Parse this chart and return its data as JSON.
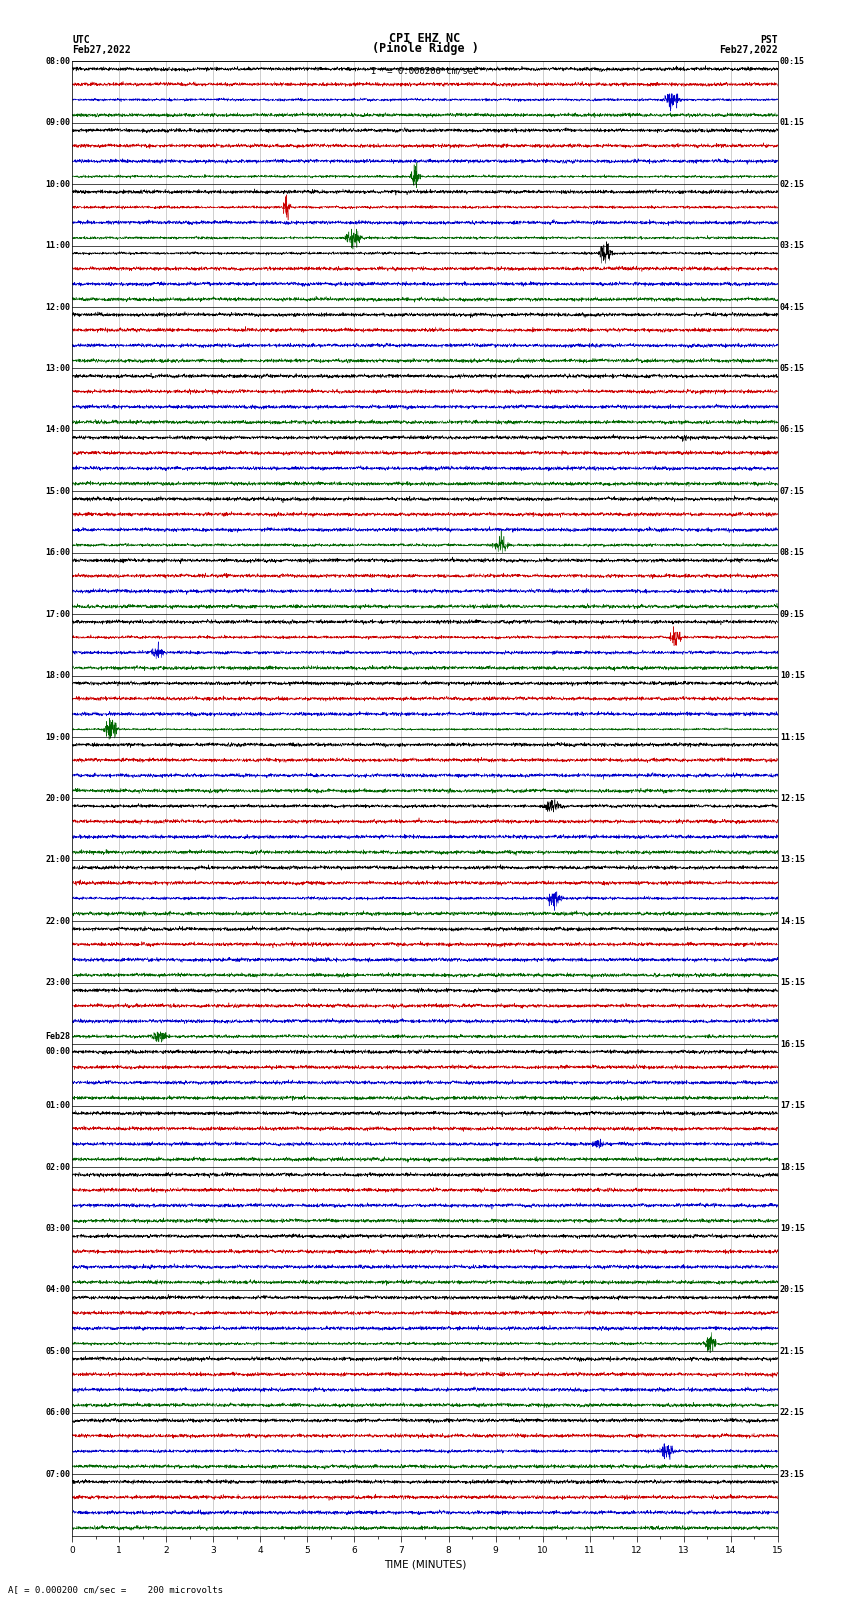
{
  "title_line1": "CPI EHZ NC",
  "title_line2": "(Pinole Ridge )",
  "scale_label": "= 0.000200 cm/sec",
  "left_header_line1": "UTC",
  "left_header_line2": "Feb27,2022",
  "right_header_line1": "PST",
  "right_header_line2": "Feb27,2022",
  "bottom_label": "TIME (MINUTES)",
  "bottom_note": "A[ = 0.000200 cm/sec =    200 microvolts",
  "xlim": [
    0,
    15
  ],
  "xticks": [
    0,
    1,
    2,
    3,
    4,
    5,
    6,
    7,
    8,
    9,
    10,
    11,
    12,
    13,
    14,
    15
  ],
  "bg_color": "#ffffff",
  "trace_colors": [
    "#000000",
    "#cc0000",
    "#0000cc",
    "#006600"
  ],
  "num_hours": 24,
  "traces_per_hour": 4,
  "left_times_utc": [
    "08:00",
    "09:00",
    "10:00",
    "11:00",
    "12:00",
    "13:00",
    "14:00",
    "15:00",
    "16:00",
    "17:00",
    "18:00",
    "19:00",
    "20:00",
    "21:00",
    "22:00",
    "23:00",
    "Feb28\n00:00",
    "01:00",
    "02:00",
    "03:00",
    "04:00",
    "05:00",
    "06:00",
    "07:00"
  ],
  "right_times_pst": [
    "00:15",
    "01:15",
    "02:15",
    "03:15",
    "04:15",
    "05:15",
    "06:15",
    "07:15",
    "08:15",
    "09:15",
    "10:15",
    "11:15",
    "12:15",
    "13:15",
    "14:15",
    "15:15",
    "16:15",
    "17:15",
    "18:15",
    "19:15",
    "20:15",
    "21:15",
    "22:15",
    "23:15"
  ],
  "grid_color": "#888888",
  "divider_color": "#000000",
  "label_fontsize": 6.0,
  "title_fontsize": 8.5
}
